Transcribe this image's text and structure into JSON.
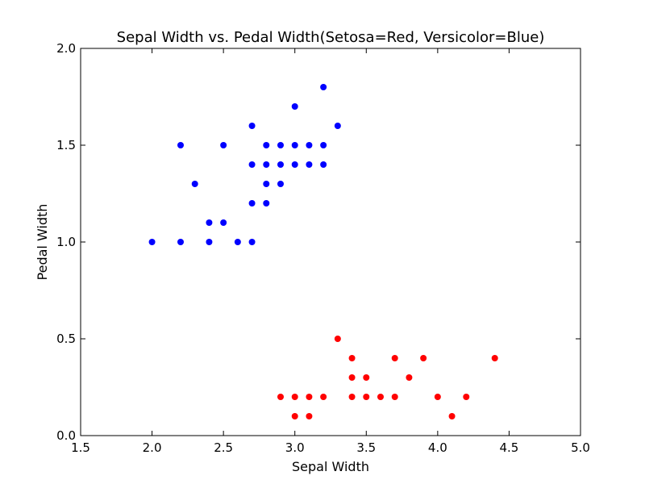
{
  "chart_data": {
    "type": "scatter",
    "title": "Sepal Width vs. Pedal Width(Setosa=Red, Versicolor=Blue)",
    "xlabel": "Sepal Width",
    "ylabel": "Pedal Width",
    "xlim": [
      1.5,
      5.0
    ],
    "ylim": [
      0.0,
      2.0
    ],
    "xticks": [
      "1.5",
      "2.0",
      "2.5",
      "3.0",
      "3.5",
      "4.0",
      "4.5",
      "5.0"
    ],
    "yticks": [
      "0.0",
      "0.5",
      "1.0",
      "1.5",
      "2.0"
    ],
    "grid": false,
    "series": [
      {
        "color": "#0000ff",
        "points": [
          [
            2.0,
            1.0
          ],
          [
            2.2,
            1.0
          ],
          [
            2.2,
            1.5
          ],
          [
            2.3,
            1.3
          ],
          [
            2.4,
            1.0
          ],
          [
            2.4,
            1.1
          ],
          [
            2.5,
            1.1
          ],
          [
            2.5,
            1.5
          ],
          [
            2.6,
            1.0
          ],
          [
            2.7,
            1.0
          ],
          [
            2.7,
            1.2
          ],
          [
            2.7,
            1.4
          ],
          [
            2.7,
            1.6
          ],
          [
            2.8,
            1.2
          ],
          [
            2.8,
            1.3
          ],
          [
            2.8,
            1.4
          ],
          [
            2.8,
            1.5
          ],
          [
            2.9,
            1.3
          ],
          [
            2.9,
            1.4
          ],
          [
            2.9,
            1.5
          ],
          [
            3.0,
            1.4
          ],
          [
            3.0,
            1.5
          ],
          [
            3.0,
            1.7
          ],
          [
            3.1,
            1.4
          ],
          [
            3.1,
            1.5
          ],
          [
            3.2,
            1.4
          ],
          [
            3.2,
            1.5
          ],
          [
            3.2,
            1.8
          ],
          [
            3.3,
            1.6
          ]
        ]
      },
      {
        "color": "#ff0000",
        "points": [
          [
            2.9,
            0.2
          ],
          [
            3.0,
            0.1
          ],
          [
            3.0,
            0.2
          ],
          [
            3.1,
            0.1
          ],
          [
            3.1,
            0.2
          ],
          [
            3.2,
            0.2
          ],
          [
            3.3,
            0.5
          ],
          [
            3.4,
            0.2
          ],
          [
            3.4,
            0.3
          ],
          [
            3.4,
            0.4
          ],
          [
            3.5,
            0.2
          ],
          [
            3.5,
            0.3
          ],
          [
            3.6,
            0.2
          ],
          [
            3.7,
            0.2
          ],
          [
            3.7,
            0.4
          ],
          [
            3.8,
            0.3
          ],
          [
            3.9,
            0.4
          ],
          [
            4.0,
            0.2
          ],
          [
            4.1,
            0.1
          ],
          [
            4.2,
            0.2
          ],
          [
            4.4,
            0.4
          ]
        ]
      }
    ]
  }
}
